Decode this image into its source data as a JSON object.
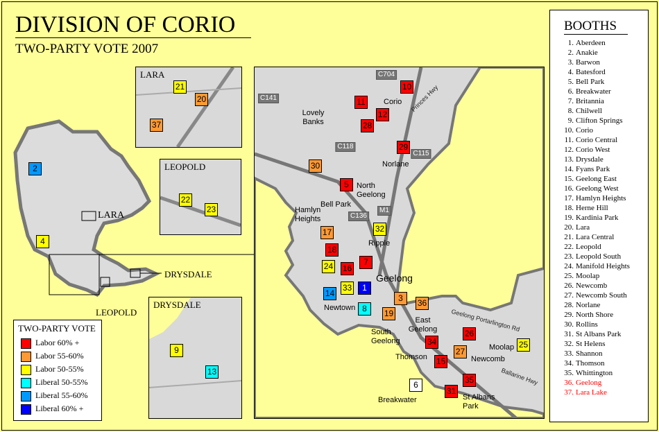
{
  "title": "DIVISION OF CORIO",
  "subtitle": "TWO-PARTY VOTE 2007",
  "colors": {
    "labor60": "#ff0000",
    "labor55": "#ff9933",
    "labor50": "#ffff00",
    "liberal50": "#00ffff",
    "liberal55": "#0099ff",
    "liberal60": "#0000ff",
    "unknown": "#ffffff",
    "sea": "#ffff99",
    "land": "#d9d9d9"
  },
  "legend": {
    "title": "TWO-PARTY VOTE",
    "items": [
      {
        "key": "labor60",
        "label": "Labor 60% +"
      },
      {
        "key": "labor55",
        "label": "Labor 55-60%"
      },
      {
        "key": "labor50",
        "label": "Labor 50-55%"
      },
      {
        "key": "liberal50",
        "label": "Liberal 50-55%"
      },
      {
        "key": "liberal55",
        "label": "Liberal 55-60%"
      },
      {
        "key": "liberal60",
        "label": "Liberal 60% +"
      }
    ]
  },
  "overview_labels": {
    "lara": "LARA",
    "drysdale": "DRYSDALE",
    "leopold": "LEOPOLD"
  },
  "insets": {
    "lara": "LARA",
    "leopold": "LEOPOLD",
    "drysdale": "DRYSDALE"
  },
  "main_map_places": [
    "Corio",
    "Lovely Banks",
    "Norlane",
    "Bell Park",
    "North Geelong",
    "Hamlyn Heights",
    "Ripple",
    "Geelong",
    "Newtown",
    "East Geelong",
    "Thomson",
    "Newcomb",
    "Moolap",
    "Breakwater",
    "St Albans Park",
    "South Geelong"
  ],
  "road_labels": [
    "C704",
    "C141",
    "C118",
    "C115",
    "M1",
    "C136",
    "Princes Hwy",
    "Ballarine Hwy",
    "Geelong Portarlington Rd"
  ],
  "markers": [
    {
      "n": "10",
      "cat": "labor60"
    },
    {
      "n": "11",
      "cat": "labor60"
    },
    {
      "n": "12",
      "cat": "labor60"
    },
    {
      "n": "28",
      "cat": "labor60"
    },
    {
      "n": "29",
      "cat": "labor60"
    },
    {
      "n": "30",
      "cat": "labor55"
    },
    {
      "n": "5",
      "cat": "labor60"
    },
    {
      "n": "32",
      "cat": "labor50"
    },
    {
      "n": "17",
      "cat": "labor55"
    },
    {
      "n": "18",
      "cat": "labor60"
    },
    {
      "n": "24",
      "cat": "labor50"
    },
    {
      "n": "16",
      "cat": "labor60"
    },
    {
      "n": "7",
      "cat": "labor60"
    },
    {
      "n": "33",
      "cat": "labor50"
    },
    {
      "n": "1",
      "cat": "liberal60"
    },
    {
      "n": "14",
      "cat": "liberal55"
    },
    {
      "n": "8",
      "cat": "liberal50"
    },
    {
      "n": "3",
      "cat": "labor55"
    },
    {
      "n": "19",
      "cat": "labor55"
    },
    {
      "n": "36",
      "cat": "labor55"
    },
    {
      "n": "26",
      "cat": "labor60"
    },
    {
      "n": "25",
      "cat": "labor50"
    },
    {
      "n": "34",
      "cat": "labor60"
    },
    {
      "n": "27",
      "cat": "labor55"
    },
    {
      "n": "15",
      "cat": "labor60"
    },
    {
      "n": "35",
      "cat": "labor60"
    },
    {
      "n": "31",
      "cat": "labor60"
    },
    {
      "n": "6",
      "cat": "unknown"
    },
    {
      "n": "21",
      "cat": "labor50"
    },
    {
      "n": "20",
      "cat": "labor55"
    },
    {
      "n": "37",
      "cat": "labor55"
    },
    {
      "n": "22",
      "cat": "labor50"
    },
    {
      "n": "23",
      "cat": "labor50"
    },
    {
      "n": "9",
      "cat": "labor50"
    },
    {
      "n": "13",
      "cat": "liberal50"
    },
    {
      "n": "2",
      "cat": "liberal55"
    },
    {
      "n": "4",
      "cat": "labor50"
    }
  ],
  "booths": {
    "title": "BOOTHS",
    "items": [
      {
        "num": "1.",
        "name": "Aberdeen"
      },
      {
        "num": "2.",
        "name": "Anakie"
      },
      {
        "num": "3.",
        "name": "Barwon"
      },
      {
        "num": "4.",
        "name": "Batesford"
      },
      {
        "num": "5.",
        "name": "Bell Park"
      },
      {
        "num": "6.",
        "name": "Breakwater"
      },
      {
        "num": "7.",
        "name": "Britannia"
      },
      {
        "num": "8.",
        "name": "Chilwell"
      },
      {
        "num": "9.",
        "name": "Clifton Springs"
      },
      {
        "num": "10.",
        "name": "Corio"
      },
      {
        "num": "11.",
        "name": "Corio Central"
      },
      {
        "num": "12.",
        "name": "Corio West"
      },
      {
        "num": "13.",
        "name": "Drysdale"
      },
      {
        "num": "14.",
        "name": "Fyans Park"
      },
      {
        "num": "15.",
        "name": "Geelong East"
      },
      {
        "num": "16.",
        "name": "Geelong West"
      },
      {
        "num": "17.",
        "name": "Hamlyn Heights"
      },
      {
        "num": "18.",
        "name": "Herne Hill"
      },
      {
        "num": "19.",
        "name": "Kardinia Park"
      },
      {
        "num": "20.",
        "name": "Lara"
      },
      {
        "num": "21.",
        "name": "Lara Central"
      },
      {
        "num": "22.",
        "name": "Leopold"
      },
      {
        "num": "23.",
        "name": "Leopold South"
      },
      {
        "num": "24.",
        "name": "Manifold Heights"
      },
      {
        "num": "25.",
        "name": "Moolap"
      },
      {
        "num": "26.",
        "name": "Newcomb"
      },
      {
        "num": "27.",
        "name": "Newcomb South"
      },
      {
        "num": "28.",
        "name": "Norlane"
      },
      {
        "num": "29.",
        "name": "North Shore"
      },
      {
        "num": "30.",
        "name": "Rollins"
      },
      {
        "num": "31.",
        "name": "St Albans Park"
      },
      {
        "num": "32.",
        "name": "St Helens"
      },
      {
        "num": "33.",
        "name": "Shannon"
      },
      {
        "num": "34.",
        "name": "Thomson"
      },
      {
        "num": "35.",
        "name": "Whittington"
      },
      {
        "num": "36.",
        "name": "Geelong",
        "highlight": "#ff0000"
      },
      {
        "num": "37.",
        "name": "Lara Lake",
        "highlight": "#ff0000"
      }
    ]
  }
}
